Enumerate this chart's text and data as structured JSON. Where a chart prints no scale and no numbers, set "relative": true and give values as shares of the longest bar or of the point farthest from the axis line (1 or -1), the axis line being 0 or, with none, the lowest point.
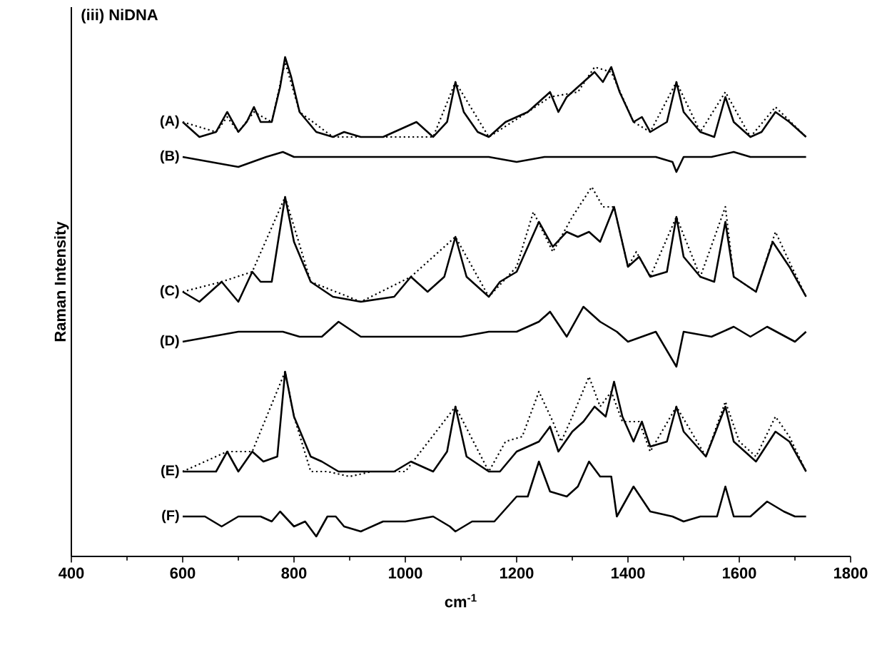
{
  "chart_data": {
    "type": "line",
    "title": "(iii) NiDNA",
    "xlabel": "cm$^{-1}$",
    "ylabel": "Raman Intensity",
    "relative": true,
    "xlim": [
      400,
      1800
    ],
    "xticks": [
      400,
      600,
      800,
      1000,
      1200,
      1400,
      1600,
      1800
    ],
    "series": [
      {
        "name": "(A)",
        "color": "#000000",
        "line_style": "solid",
        "x": [
          600,
          630,
          660,
          680,
          700,
          715,
          728,
          740,
          760,
          775,
          784,
          795,
          810,
          840,
          870,
          890,
          920,
          960,
          1000,
          1020,
          1050,
          1075,
          1090,
          1105,
          1130,
          1150,
          1180,
          1220,
          1240,
          1260,
          1275,
          1290,
          1310,
          1340,
          1355,
          1370,
          1385,
          1410,
          1425,
          1440,
          1470,
          1487,
          1500,
          1530,
          1555,
          1575,
          1590,
          1620,
          1640,
          1665,
          1690,
          1720
        ],
        "values": [
          0.87,
          0.84,
          0.85,
          0.89,
          0.85,
          0.87,
          0.9,
          0.87,
          0.87,
          0.94,
          1.0,
          0.96,
          0.89,
          0.85,
          0.84,
          0.85,
          0.84,
          0.84,
          0.86,
          0.87,
          0.84,
          0.87,
          0.95,
          0.89,
          0.85,
          0.84,
          0.87,
          0.89,
          0.91,
          0.93,
          0.89,
          0.92,
          0.94,
          0.97,
          0.95,
          0.98,
          0.93,
          0.87,
          0.88,
          0.85,
          0.87,
          0.95,
          0.89,
          0.85,
          0.84,
          0.92,
          0.87,
          0.84,
          0.85,
          0.89,
          0.87,
          0.84
        ]
      },
      {
        "color": "#000000",
        "line_style": "dotted",
        "x": [
          600,
          660,
          680,
          700,
          728,
          760,
          784,
          810,
          870,
          960,
          1050,
          1090,
          1150,
          1220,
          1260,
          1310,
          1340,
          1370,
          1410,
          1440,
          1487,
          1530,
          1575,
          1620,
          1665,
          1720
        ],
        "values": [
          0.87,
          0.85,
          0.88,
          0.85,
          0.89,
          0.87,
          0.99,
          0.89,
          0.84,
          0.84,
          0.84,
          0.95,
          0.84,
          0.89,
          0.92,
          0.93,
          0.98,
          0.97,
          0.87,
          0.85,
          0.95,
          0.85,
          0.93,
          0.84,
          0.9,
          0.84
        ]
      },
      {
        "name": "(B)",
        "color": "#000000",
        "line_style": "solid",
        "x": [
          600,
          650,
          700,
          750,
          780,
          800,
          850,
          900,
          950,
          1000,
          1100,
          1150,
          1200,
          1250,
          1300,
          1350,
          1400,
          1450,
          1480,
          1487,
          1500,
          1550,
          1590,
          1620,
          1680,
          1720
        ],
        "values": [
          0.8,
          0.79,
          0.78,
          0.8,
          0.81,
          0.8,
          0.8,
          0.8,
          0.8,
          0.8,
          0.8,
          0.8,
          0.79,
          0.8,
          0.8,
          0.8,
          0.8,
          0.8,
          0.79,
          0.77,
          0.8,
          0.8,
          0.81,
          0.8,
          0.8,
          0.8
        ]
      },
      {
        "name": "(C)",
        "color": "#000000",
        "line_style": "solid",
        "x": [
          600,
          630,
          670,
          700,
          725,
          740,
          760,
          784,
          800,
          830,
          870,
          920,
          980,
          1010,
          1040,
          1070,
          1090,
          1110,
          1150,
          1170,
          1200,
          1240,
          1265,
          1290,
          1310,
          1330,
          1350,
          1375,
          1400,
          1420,
          1440,
          1470,
          1487,
          1500,
          1530,
          1555,
          1575,
          1590,
          1630,
          1660,
          1690,
          1720
        ],
        "values": [
          0.53,
          0.51,
          0.55,
          0.51,
          0.57,
          0.55,
          0.55,
          0.72,
          0.63,
          0.55,
          0.52,
          0.51,
          0.52,
          0.56,
          0.53,
          0.56,
          0.64,
          0.56,
          0.52,
          0.55,
          0.57,
          0.67,
          0.62,
          0.65,
          0.64,
          0.65,
          0.63,
          0.7,
          0.58,
          0.6,
          0.56,
          0.57,
          0.68,
          0.6,
          0.56,
          0.55,
          0.67,
          0.56,
          0.53,
          0.63,
          0.58,
          0.52
        ]
      },
      {
        "color": "#000000",
        "line_style": "dotted",
        "x": [
          600,
          670,
          725,
          784,
          830,
          920,
          1010,
          1090,
          1150,
          1200,
          1230,
          1265,
          1300,
          1335,
          1355,
          1375,
          1400,
          1415,
          1440,
          1487,
          1530,
          1575,
          1590,
          1630,
          1665,
          1690,
          1720
        ],
        "values": [
          0.53,
          0.55,
          0.57,
          0.72,
          0.55,
          0.51,
          0.56,
          0.64,
          0.52,
          0.58,
          0.69,
          0.61,
          0.68,
          0.74,
          0.7,
          0.7,
          0.58,
          0.61,
          0.56,
          0.68,
          0.56,
          0.7,
          0.56,
          0.53,
          0.65,
          0.59,
          0.52
        ]
      },
      {
        "name": "(D)",
        "color": "#000000",
        "line_style": "solid",
        "x": [
          600,
          650,
          700,
          750,
          780,
          810,
          850,
          880,
          920,
          1000,
          1100,
          1150,
          1200,
          1240,
          1260,
          1290,
          1320,
          1350,
          1380,
          1400,
          1450,
          1487,
          1500,
          1550,
          1590,
          1620,
          1650,
          1700,
          1720
        ],
        "values": [
          0.43,
          0.44,
          0.45,
          0.45,
          0.45,
          0.44,
          0.44,
          0.47,
          0.44,
          0.44,
          0.44,
          0.45,
          0.45,
          0.47,
          0.49,
          0.44,
          0.5,
          0.47,
          0.45,
          0.43,
          0.45,
          0.38,
          0.45,
          0.44,
          0.46,
          0.44,
          0.46,
          0.43,
          0.45
        ]
      },
      {
        "name": "(E)",
        "color": "#000000",
        "line_style": "solid",
        "x": [
          600,
          620,
          660,
          680,
          700,
          725,
          745,
          770,
          784,
          800,
          830,
          850,
          880,
          920,
          980,
          1010,
          1050,
          1075,
          1090,
          1110,
          1150,
          1170,
          1200,
          1240,
          1260,
          1275,
          1300,
          1320,
          1340,
          1360,
          1375,
          1390,
          1410,
          1425,
          1440,
          1470,
          1487,
          1500,
          1540,
          1575,
          1590,
          1630,
          1665,
          1690,
          1720
        ],
        "values": [
          0.17,
          0.17,
          0.17,
          0.21,
          0.17,
          0.21,
          0.19,
          0.2,
          0.37,
          0.28,
          0.2,
          0.19,
          0.17,
          0.17,
          0.17,
          0.19,
          0.17,
          0.21,
          0.3,
          0.2,
          0.17,
          0.17,
          0.21,
          0.23,
          0.26,
          0.21,
          0.25,
          0.27,
          0.3,
          0.28,
          0.35,
          0.28,
          0.23,
          0.27,
          0.22,
          0.23,
          0.3,
          0.25,
          0.2,
          0.3,
          0.23,
          0.19,
          0.25,
          0.23,
          0.17
        ]
      },
      {
        "color": "#000000",
        "line_style": "dotted",
        "x": [
          600,
          680,
          725,
          784,
          800,
          830,
          860,
          900,
          940,
          1000,
          1090,
          1150,
          1180,
          1210,
          1240,
          1265,
          1280,
          1300,
          1330,
          1350,
          1370,
          1390,
          1420,
          1440,
          1487,
          1540,
          1575,
          1600,
          1630,
          1665,
          1690,
          1720
        ],
        "values": [
          0.17,
          0.21,
          0.21,
          0.37,
          0.28,
          0.17,
          0.17,
          0.16,
          0.17,
          0.17,
          0.3,
          0.17,
          0.23,
          0.24,
          0.33,
          0.27,
          0.23,
          0.28,
          0.36,
          0.3,
          0.33,
          0.27,
          0.27,
          0.21,
          0.3,
          0.2,
          0.31,
          0.23,
          0.2,
          0.28,
          0.24,
          0.17
        ]
      },
      {
        "name": "(F)",
        "color": "#000000",
        "line_style": "solid",
        "x": [
          600,
          640,
          670,
          700,
          740,
          760,
          775,
          800,
          820,
          840,
          860,
          875,
          890,
          920,
          960,
          1000,
          1050,
          1080,
          1090,
          1120,
          1160,
          1200,
          1220,
          1240,
          1260,
          1290,
          1310,
          1330,
          1350,
          1370,
          1380,
          1410,
          1440,
          1480,
          1500,
          1530,
          1560,
          1575,
          1590,
          1620,
          1650,
          1680,
          1700,
          1720
        ],
        "values": [
          0.08,
          0.08,
          0.06,
          0.08,
          0.08,
          0.07,
          0.09,
          0.06,
          0.07,
          0.04,
          0.08,
          0.08,
          0.06,
          0.05,
          0.07,
          0.07,
          0.08,
          0.06,
          0.05,
          0.07,
          0.07,
          0.12,
          0.12,
          0.19,
          0.13,
          0.12,
          0.14,
          0.19,
          0.16,
          0.16,
          0.08,
          0.14,
          0.09,
          0.08,
          0.07,
          0.08,
          0.08,
          0.14,
          0.08,
          0.08,
          0.11,
          0.09,
          0.08,
          0.08
        ]
      }
    ]
  }
}
